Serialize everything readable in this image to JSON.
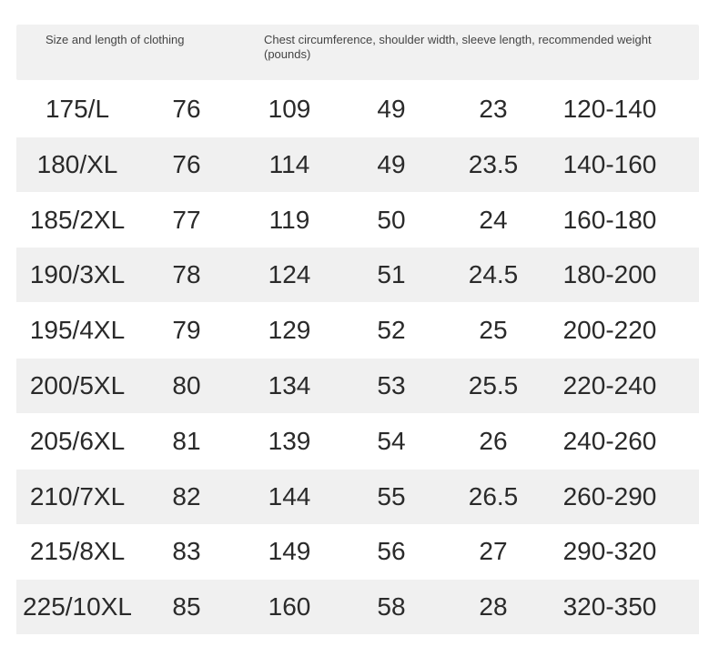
{
  "header": {
    "col1": "Size and length of clothing",
    "col2": "Chest circumference, shoulder width, sleeve length, recommended weight (pounds)"
  },
  "rows": [
    [
      "175/L",
      "76",
      "109",
      "49",
      "23",
      "120-140"
    ],
    [
      "180/XL",
      "76",
      "114",
      "49",
      "23.5",
      "140-160"
    ],
    [
      "185/2XL",
      "77",
      "119",
      "50",
      "24",
      "160-180"
    ],
    [
      "190/3XL",
      "78",
      "124",
      "51",
      "24.5",
      "180-200"
    ],
    [
      "195/4XL",
      "79",
      "129",
      "52",
      "25",
      "200-220"
    ],
    [
      "200/5XL",
      "80",
      "134",
      "53",
      "25.5",
      "220-240"
    ],
    [
      "205/6XL",
      "81",
      "139",
      "54",
      "26",
      "240-260"
    ],
    [
      "210/7XL",
      "82",
      "144",
      "55",
      "26.5",
      "260-290"
    ],
    [
      "215/8XL",
      "83",
      "149",
      "56",
      "27",
      "290-320"
    ],
    [
      "225/10XL",
      "85",
      "160",
      "58",
      "28",
      "320-350"
    ]
  ]
}
